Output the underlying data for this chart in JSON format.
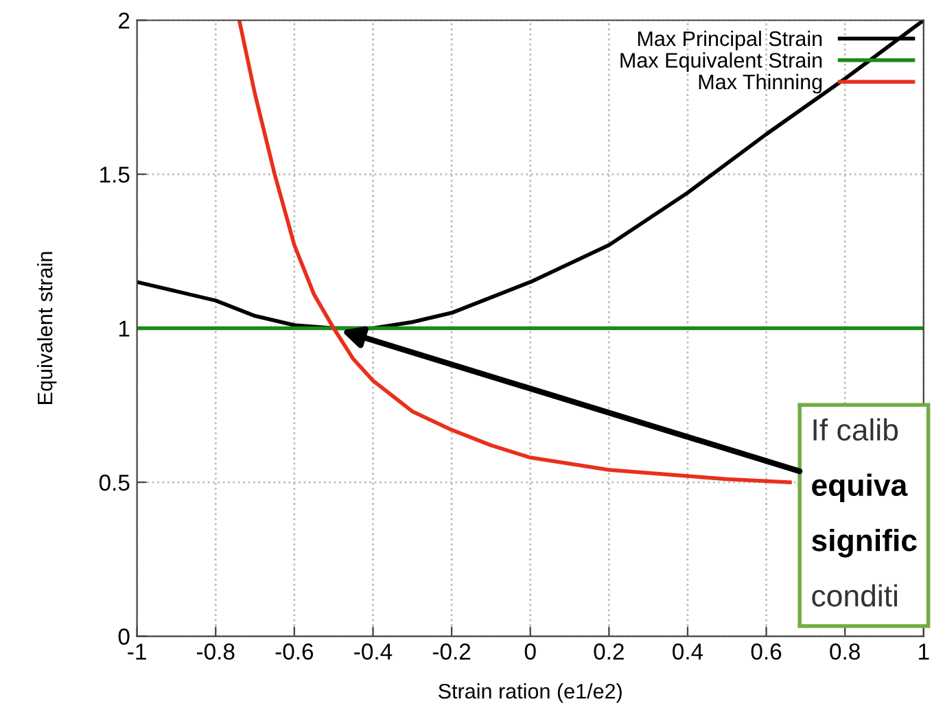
{
  "chart_data": {
    "type": "line",
    "xlabel": "Strain ration (e1/e2)",
    "ylabel": "Equivalent strain",
    "xlim": [
      -1,
      1
    ],
    "ylim": [
      0,
      2
    ],
    "xticks": [
      -1,
      -0.8,
      -0.6,
      -0.4,
      -0.2,
      0,
      0.2,
      0.4,
      0.6,
      0.8,
      1
    ],
    "yticks": [
      0,
      0.5,
      1,
      1.5,
      2
    ],
    "grid": true,
    "legend": "top right",
    "marker": "none",
    "line_style": "solid",
    "series": [
      {
        "name": "Max Principal Strain",
        "color": "#000000",
        "x": [
          -1,
          -0.9,
          -0.8,
          -0.7,
          -0.6,
          -0.5,
          -0.4,
          -0.3,
          -0.2,
          -0.1,
          0,
          0.2,
          0.4,
          0.6,
          0.8,
          1
        ],
        "values": [
          1.15,
          1.12,
          1.09,
          1.04,
          1.01,
          1.0,
          1.0,
          1.02,
          1.05,
          1.1,
          1.15,
          1.27,
          1.44,
          1.63,
          1.81,
          2.0
        ]
      },
      {
        "name": "Max Equivalent Strain",
        "color": "#1a8a1a",
        "x": [
          -1,
          1
        ],
        "values": [
          1,
          1
        ]
      },
      {
        "name": "Max Thinning",
        "color": "#e8301c",
        "x": [
          -0.74,
          -0.7,
          -0.65,
          -0.6,
          -0.55,
          -0.5,
          -0.45,
          -0.4,
          -0.34,
          -0.3,
          -0.2,
          -0.1,
          0,
          0.1,
          0.2,
          0.3,
          0.4,
          0.5,
          0.66
        ],
        "values": [
          2.0,
          1.76,
          1.5,
          1.27,
          1.11,
          1.0,
          0.9,
          0.83,
          0.77,
          0.73,
          0.67,
          0.62,
          0.58,
          0.56,
          0.54,
          0.53,
          0.52,
          0.51,
          0.5
        ]
      }
    ],
    "annotations": [
      "If calib",
      "equiva",
      "signific",
      "conditi"
    ]
  }
}
